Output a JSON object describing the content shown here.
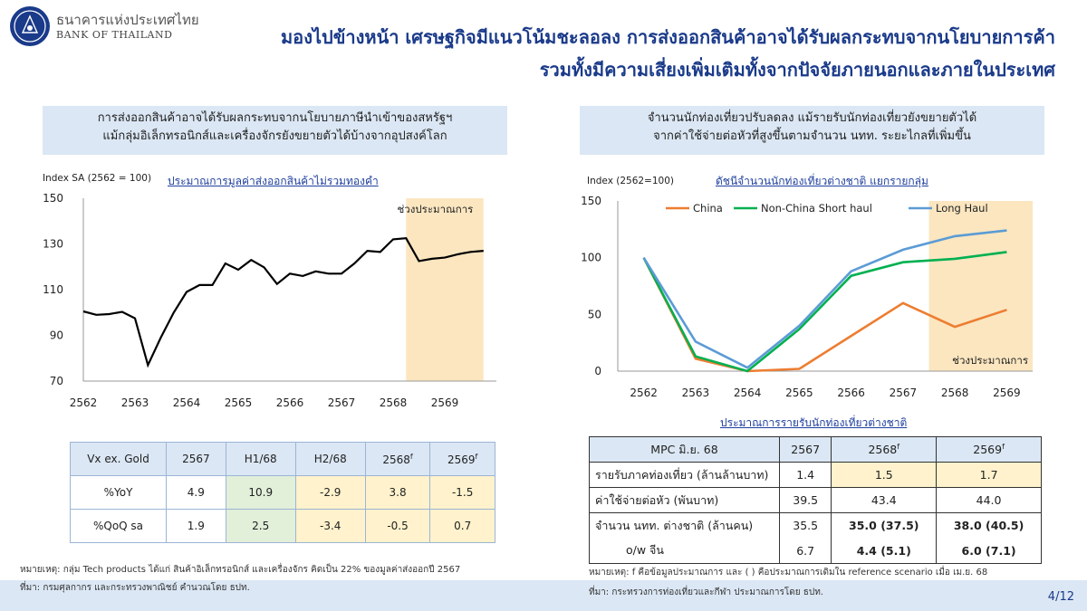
{
  "header": {
    "bank_th": "ธนาคารแห่งประเทศไทย",
    "bank_en": "BANK OF THAILAND",
    "title_line1": "มองไปข้างหน้า เศรษฐกิจมีแนวโน้มชะลอลง การส่งออกสินค้าอาจได้รับผลกระทบจากนโยบายการค้า",
    "title_line2": "รวมทั้งมีความเสี่ยงเพิ่มเติมทั้งจากปัจจัยภายนอกและภายในประเทศ"
  },
  "left": {
    "headline_1": "การส่งออกสินค้าอาจได้รับผลกระทบจากนโยบายภาษีนำเข้าของสหรัฐฯ",
    "headline_2": "แม้กลุ่มอิเล็กทรอนิกส์และเครื่องจักรยังขยายตัวได้บ้างจากอุปสงค์โลก",
    "chart_title": "ประมาณการมูลค่าส่งออกสินค้าไม่รวมทองคำ",
    "unit": "Index SA (2562 = 100)",
    "forecast_label": "ช่วงประมาณการ",
    "table": {
      "headers": [
        "Vx ex. Gold",
        "2567",
        "H1/68",
        "H2/68",
        "2568",
        "2569"
      ],
      "header_sup": [
        "",
        "",
        "",
        "",
        "f",
        "f"
      ],
      "rows": [
        [
          "%YoY",
          "4.9",
          "10.9",
          "-2.9",
          "3.8",
          "-1.5"
        ],
        [
          "%QoQ sa",
          "1.9",
          "2.5",
          "-3.4",
          "-0.5",
          "0.7"
        ]
      ]
    },
    "note": "หมายเหตุ: กลุ่ม Tech products ได้แก่ สินค้าอิเล็กทรอนิกส์ และเครื่องจักร คิดเป็น 22% ของมูลค่าส่งออกปี 2567",
    "source": "ที่มา: กรมศุลกากร และกระทรวงพาณิชย์ คำนวณโดย ธปท."
  },
  "right": {
    "headline_1": "จำนวนนักท่องเที่ยวปรับลดลง แม้รายรับนักท่องเที่ยวยังขยายตัวได้",
    "headline_2": "จากค่าใช้จ่ายต่อหัวที่สูงขึ้นตามจำนวน นทท. ระยะไกลที่เพิ่มขึ้น",
    "chart_title": "ดัชนีจำนวนนักท่องเที่ยวต่างชาติ แยกรายกลุ่ม",
    "unit": "Index (2562=100)",
    "forecast_label": "ช่วงประมาณการ",
    "table_title": "ประมาณการรายรับนักท่องเที่ยวต่างชาติ",
    "table": {
      "headers": [
        "MPC มิ.ย. 68",
        "2567",
        "2568",
        "2569"
      ],
      "header_sup": [
        "",
        "",
        "f",
        "f"
      ],
      "rows": [
        [
          "รายรับภาคท่องเที่ยว (ล้านล้านบาท)",
          "1.4",
          "1.5",
          "1.7"
        ],
        [
          "ค่าใช้จ่ายต่อหัว (พันบาท)",
          "39.5",
          "43.4",
          "44.0"
        ],
        [
          "จำนวน นทท. ต่างชาติ (ล้านคน)",
          "35.5",
          "35.0 (37.5)",
          "38.0 (40.5)"
        ],
        [
          "o/w จีน",
          "6.7",
          "4.4 (5.1)",
          "6.0 (7.1)"
        ]
      ]
    },
    "note": "หมายเหตุ: f คือข้อมูลประมาณการ และ ( ) คือประมาณการเดิมใน reference scenario เมื่อ เม.ย. 68",
    "source": "ที่มา: กระทรวงการท่องเที่ยวและกีฬา ประมาณการโดย ธปท."
  },
  "page_number": "4/12",
  "colors": {
    "title": "#1a3a8a",
    "headline_bg": "#dbe7f4",
    "forecast_shade": "#fbe6c0",
    "china": "#ed7d31",
    "non_china": "#00b050",
    "long_haul": "#5b9bd5",
    "export_line": "#000000"
  },
  "chart_data": [
    {
      "type": "line",
      "title": "ประมาณการมูลค่าส่งออกสินค้าไม่รวมทองคำ",
      "ylabel": "Index SA (2562 = 100)",
      "ylim": [
        70,
        150
      ],
      "yticks": [
        70,
        90,
        110,
        130,
        150
      ],
      "xticks": [
        "2562",
        "2563",
        "2564",
        "2565",
        "2566",
        "2567",
        "2568",
        "2569"
      ],
      "forecast_start": 2568.25,
      "series": [
        {
          "x": [
            2562.0,
            2562.25,
            2562.5,
            2562.75,
            2563.0,
            2563.25,
            2563.5,
            2563.75,
            2564.0,
            2564.25,
            2564.5,
            2564.75,
            2565.0,
            2565.25,
            2565.5,
            2565.75,
            2566.0,
            2566.25,
            2566.5,
            2566.75,
            2567.0,
            2567.25,
            2567.5,
            2567.75,
            2568.0,
            2568.25,
            2568.5,
            2568.75,
            2569.0,
            2569.25,
            2569.5,
            2569.75
          ],
          "values": [
            100.5,
            99.0,
            99.3,
            100.3,
            97.5,
            77.0,
            89.0,
            100.0,
            109.0,
            112.0,
            112.0,
            121.5,
            118.7,
            123.0,
            119.8,
            112.5,
            117.0,
            116.0,
            118.0,
            117.0,
            117.0,
            121.5,
            127.0,
            126.5,
            132.0,
            132.5,
            122.5,
            123.5,
            124.0,
            125.5,
            126.5,
            127.0
          ]
        }
      ]
    },
    {
      "type": "line",
      "title": "ดัชนีจำนวนนักท่องเที่ยวต่างชาติ แยกรายกลุ่ม",
      "ylabel": "Index (2562=100)",
      "ylim": [
        0,
        150
      ],
      "yticks": [
        0,
        50,
        100,
        150
      ],
      "categories": [
        "2562",
        "2563",
        "2564",
        "2565",
        "2566",
        "2567",
        "2568",
        "2569"
      ],
      "forecast_start": "2568",
      "legend": "top",
      "series": [
        {
          "name": "China",
          "values": [
            100,
            11,
            0,
            2,
            31,
            60,
            39,
            54
          ]
        },
        {
          "name": "Non-China Short haul",
          "values": [
            100,
            13,
            0,
            37,
            84,
            96,
            99,
            105
          ]
        },
        {
          "name": "Long Haul",
          "values": [
            100,
            26,
            3,
            40,
            88,
            107,
            119,
            124
          ]
        }
      ]
    }
  ]
}
